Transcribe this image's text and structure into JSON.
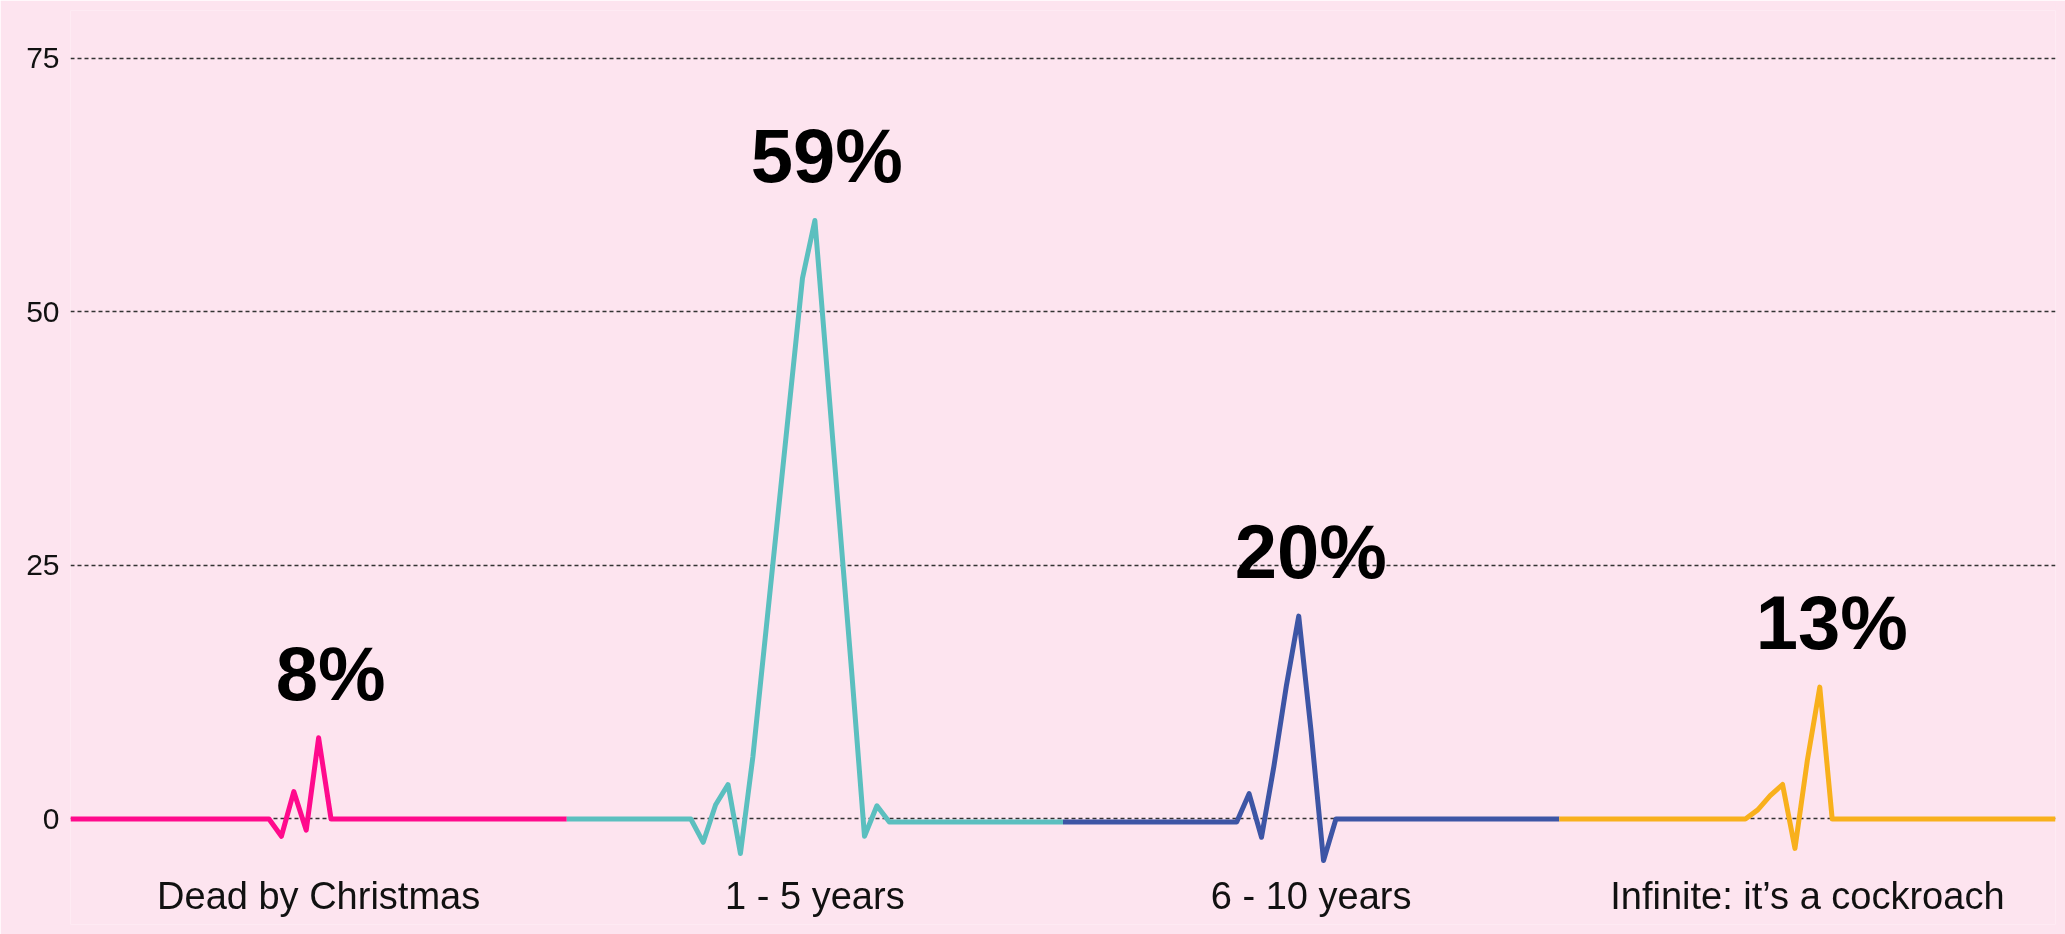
{
  "chart_data": {
    "type": "line",
    "categories": [
      null,
      null,
      null,
      null,
      null,
      null,
      null,
      null,
      null,
      null,
      null,
      null,
      null,
      null,
      null,
      null,
      null,
      null,
      null,
      null,
      null,
      null,
      null,
      null,
      null,
      null,
      null,
      null,
      null,
      null,
      null,
      null,
      null,
      null,
      null,
      null,
      null,
      null,
      null,
      null,
      null,
      null,
      null,
      null,
      null,
      null,
      null,
      null,
      null,
      null,
      null,
      null,
      null,
      null,
      null,
      null,
      null,
      null,
      null,
      null,
      null,
      null,
      null,
      null,
      null,
      null,
      null,
      null,
      null,
      null,
      null,
      null,
      null,
      null,
      null,
      null,
      null,
      null,
      null,
      null,
      null,
      null,
      null,
      null,
      null,
      null,
      null,
      null,
      null,
      null,
      null,
      null,
      null,
      null,
      null,
      null,
      null,
      null,
      null,
      null,
      null,
      null,
      null,
      null,
      null,
      null,
      null,
      null,
      null,
      null,
      null,
      null,
      null,
      null,
      null,
      null,
      null,
      null,
      null,
      null,
      null,
      null,
      null,
      null,
      null,
      null,
      null,
      null,
      null,
      null,
      null,
      null,
      null,
      null,
      null,
      null,
      null,
      null,
      null,
      null,
      null,
      null,
      null,
      null,
      null,
      null,
      null,
      null,
      null,
      null,
      null,
      null,
      null,
      null,
      null,
      null,
      null,
      null,
      null,
      null,
      null
    ],
    "ylim": [
      -10.4,
      79.7
    ],
    "yticks": [
      0,
      25,
      50,
      75
    ],
    "tick_labels": "y",
    "grid": "y",
    "line_style": "solid",
    "annotations": [
      "Dead by Christmas",
      "1 - 5 years",
      "6 - 10 years",
      "Infinite: it’s a cockroach"
    ],
    "series": [
      {
        "color": "#ff0a8c",
        "values": [
          0,
          0,
          0,
          0,
          0,
          0,
          0,
          0,
          0,
          0,
          0,
          0,
          0,
          0,
          0,
          0,
          0,
          -1.7,
          2.7,
          -1.1,
          8,
          0,
          0,
          0,
          0,
          0,
          0,
          0,
          0,
          0,
          0,
          0,
          0,
          0,
          0,
          0,
          0,
          0,
          0,
          0,
          0,
          null,
          null,
          null,
          null,
          null,
          null,
          null,
          null,
          null,
          null,
          null,
          null,
          null,
          null,
          null,
          null,
          null,
          null,
          null,
          null,
          null,
          null,
          null,
          null,
          null,
          null,
          null,
          null,
          null,
          null,
          null,
          null,
          null,
          null,
          null,
          null,
          null,
          null,
          null,
          null,
          null,
          null,
          null,
          null,
          null,
          null,
          null,
          null,
          null,
          null,
          null,
          null,
          null,
          null,
          null,
          null,
          null,
          null,
          null,
          null,
          null,
          null,
          null,
          null,
          null,
          null,
          null,
          null,
          null,
          null,
          null,
          null,
          null,
          null,
          null,
          null,
          null,
          null,
          null,
          null,
          null,
          null,
          null,
          null,
          null,
          null,
          null,
          null,
          null,
          null,
          null,
          null,
          null,
          null,
          null,
          null,
          null,
          null,
          null,
          null,
          null,
          null,
          null,
          null,
          null,
          null,
          null,
          null,
          null,
          null,
          null,
          null,
          null,
          null,
          null,
          null,
          null,
          null,
          null,
          null
        ],
        "value_labels": [
          null,
          null,
          null,
          null,
          null,
          null,
          null,
          null,
          null,
          null,
          null,
          null,
          null,
          null,
          null,
          null,
          null,
          null,
          null,
          null,
          "8%",
          null,
          null,
          null,
          null,
          null,
          null,
          null,
          null,
          null,
          null,
          null,
          null,
          null,
          null,
          null,
          null,
          null,
          null,
          null,
          null,
          null,
          null,
          null,
          null,
          null,
          null,
          null,
          null,
          null,
          null,
          null,
          null,
          null,
          null,
          null,
          null,
          null,
          null,
          null,
          null,
          null,
          null,
          null,
          null,
          null,
          null,
          null,
          null,
          null,
          null,
          null,
          null,
          null,
          null,
          null,
          null,
          null,
          null,
          null,
          null,
          null,
          null,
          null,
          null,
          null,
          null,
          null,
          null,
          null,
          null,
          null,
          null,
          null,
          null,
          null,
          null,
          null,
          null,
          null,
          null,
          null,
          null,
          null,
          null,
          null,
          null,
          null,
          null,
          null,
          null,
          null,
          null,
          null,
          null,
          null,
          null,
          null,
          null,
          null,
          null,
          null,
          null,
          null,
          null,
          null,
          null,
          null,
          null,
          null,
          null,
          null,
          null,
          null,
          null,
          null,
          null,
          null,
          null,
          null,
          null,
          null,
          null,
          null,
          null,
          null,
          null,
          null,
          null,
          null,
          null,
          null,
          null,
          null,
          null,
          null,
          null,
          null,
          null,
          null,
          null
        ]
      },
      {
        "color": "#5bbfbf",
        "values": [
          null,
          null,
          null,
          null,
          null,
          null,
          null,
          null,
          null,
          null,
          null,
          null,
          null,
          null,
          null,
          null,
          null,
          null,
          null,
          null,
          null,
          null,
          null,
          null,
          null,
          null,
          null,
          null,
          null,
          null,
          null,
          null,
          null,
          null,
          null,
          null,
          null,
          null,
          null,
          null,
          0,
          0,
          0,
          0,
          0,
          0,
          0,
          0,
          0,
          0,
          0,
          -2.3,
          1.4,
          3.4,
          -3.4,
          6.1,
          17.9,
          29.7,
          41.5,
          53.3,
          59,
          44,
          29,
          14,
          -1.7,
          1.3,
          -0.3,
          -0.3,
          -0.3,
          -0.3,
          -0.3,
          -0.3,
          -0.3,
          -0.3,
          -0.3,
          -0.3,
          -0.3,
          -0.3,
          -0.3,
          -0.3,
          -0.3,
          null,
          null,
          null,
          null,
          null,
          null,
          null,
          null,
          null,
          null,
          null,
          null,
          null,
          null,
          null,
          null,
          null,
          null,
          null,
          null,
          null,
          null,
          null,
          null,
          null,
          null,
          null,
          null,
          null,
          null,
          null,
          null,
          null,
          null,
          null,
          null,
          null,
          null,
          null,
          null,
          null,
          null,
          null,
          null,
          null,
          null,
          null,
          null,
          null,
          null,
          null,
          null,
          null,
          null,
          null,
          null,
          null,
          null,
          null,
          null,
          null,
          null,
          null,
          null,
          null,
          null,
          null,
          null,
          null,
          null,
          null,
          null,
          null,
          null,
          null,
          null,
          null,
          null,
          null,
          null
        ],
        "value_labels": [
          null,
          null,
          null,
          null,
          null,
          null,
          null,
          null,
          null,
          null,
          null,
          null,
          null,
          null,
          null,
          null,
          null,
          null,
          null,
          null,
          null,
          null,
          null,
          null,
          null,
          null,
          null,
          null,
          null,
          null,
          null,
          null,
          null,
          null,
          null,
          null,
          null,
          null,
          null,
          null,
          null,
          null,
          null,
          null,
          null,
          null,
          null,
          null,
          null,
          null,
          null,
          null,
          null,
          null,
          null,
          null,
          null,
          null,
          null,
          null,
          "59%",
          null,
          null,
          null,
          null,
          null,
          null,
          null,
          null,
          null,
          null,
          null,
          null,
          null,
          null,
          null,
          null,
          null,
          null,
          null,
          null,
          null,
          null,
          null,
          null,
          null,
          null,
          null,
          null,
          null,
          null,
          null,
          null,
          null,
          null,
          null,
          null,
          null,
          null,
          null,
          null,
          null,
          null,
          null,
          null,
          null,
          null,
          null,
          null,
          null,
          null,
          null,
          null,
          null,
          null,
          null,
          null,
          null,
          null,
          null,
          null,
          null,
          null,
          null,
          null,
          null,
          null,
          null,
          null,
          null,
          null,
          null,
          null,
          null,
          null,
          null,
          null,
          null,
          null,
          null,
          null,
          null,
          null,
          null,
          null,
          null,
          null,
          null,
          null,
          null,
          null,
          null,
          null,
          null,
          null,
          null,
          null,
          null,
          null,
          null,
          null
        ]
      },
      {
        "color": "#3d55a5",
        "values": [
          null,
          null,
          null,
          null,
          null,
          null,
          null,
          null,
          null,
          null,
          null,
          null,
          null,
          null,
          null,
          null,
          null,
          null,
          null,
          null,
          null,
          null,
          null,
          null,
          null,
          null,
          null,
          null,
          null,
          null,
          null,
          null,
          null,
          null,
          null,
          null,
          null,
          null,
          null,
          null,
          null,
          null,
          null,
          null,
          null,
          null,
          null,
          null,
          null,
          null,
          null,
          null,
          null,
          null,
          null,
          null,
          null,
          null,
          null,
          null,
          null,
          null,
          null,
          null,
          null,
          null,
          null,
          null,
          null,
          null,
          null,
          null,
          null,
          null,
          null,
          null,
          null,
          null,
          null,
          null,
          -0.3,
          -0.3,
          -0.3,
          -0.3,
          -0.3,
          -0.3,
          -0.3,
          -0.3,
          -0.3,
          -0.3,
          -0.3,
          -0.3,
          -0.3,
          -0.3,
          -0.3,
          2.5,
          -1.8,
          5.2,
          13.1,
          20,
          8.6,
          -4.1,
          0,
          0,
          0,
          0,
          0,
          0,
          0,
          0,
          0,
          0,
          0,
          0,
          0,
          0,
          0,
          0,
          0,
          0,
          0,
          null,
          null,
          null,
          null,
          null,
          null,
          null,
          null,
          null,
          null,
          null,
          null,
          null,
          null,
          null,
          null,
          null,
          null,
          null,
          null,
          null,
          null,
          null,
          null,
          null,
          null,
          null,
          null,
          null,
          null,
          null,
          null,
          null,
          null,
          null,
          null,
          null,
          null,
          null,
          null
        ],
        "value_labels": [
          null,
          null,
          null,
          null,
          null,
          null,
          null,
          null,
          null,
          null,
          null,
          null,
          null,
          null,
          null,
          null,
          null,
          null,
          null,
          null,
          null,
          null,
          null,
          null,
          null,
          null,
          null,
          null,
          null,
          null,
          null,
          null,
          null,
          null,
          null,
          null,
          null,
          null,
          null,
          null,
          null,
          null,
          null,
          null,
          null,
          null,
          null,
          null,
          null,
          null,
          null,
          null,
          null,
          null,
          null,
          null,
          null,
          null,
          null,
          null,
          null,
          null,
          null,
          null,
          null,
          null,
          null,
          null,
          null,
          null,
          null,
          null,
          null,
          null,
          null,
          null,
          null,
          null,
          null,
          null,
          null,
          null,
          null,
          null,
          null,
          null,
          null,
          null,
          null,
          null,
          null,
          null,
          null,
          null,
          null,
          null,
          null,
          null,
          null,
          "20%",
          null,
          null,
          null,
          null,
          null,
          null,
          null,
          null,
          null,
          null,
          null,
          null,
          null,
          null,
          null,
          null,
          null,
          null,
          null,
          null,
          null,
          null,
          null,
          null,
          null,
          null,
          null,
          null,
          null,
          null,
          null,
          null,
          null,
          null,
          null,
          null,
          null,
          null,
          null,
          null,
          null,
          null,
          null,
          null,
          null,
          null,
          null,
          null,
          null,
          null,
          null,
          null,
          null,
          null,
          null,
          null,
          null,
          null,
          null,
          null,
          null
        ]
      },
      {
        "color": "#f8b01c",
        "values": [
          null,
          null,
          null,
          null,
          null,
          null,
          null,
          null,
          null,
          null,
          null,
          null,
          null,
          null,
          null,
          null,
          null,
          null,
          null,
          null,
          null,
          null,
          null,
          null,
          null,
          null,
          null,
          null,
          null,
          null,
          null,
          null,
          null,
          null,
          null,
          null,
          null,
          null,
          null,
          null,
          null,
          null,
          null,
          null,
          null,
          null,
          null,
          null,
          null,
          null,
          null,
          null,
          null,
          null,
          null,
          null,
          null,
          null,
          null,
          null,
          null,
          null,
          null,
          null,
          null,
          null,
          null,
          null,
          null,
          null,
          null,
          null,
          null,
          null,
          null,
          null,
          null,
          null,
          null,
          null,
          null,
          null,
          null,
          null,
          null,
          null,
          null,
          null,
          null,
          null,
          null,
          null,
          null,
          null,
          null,
          null,
          null,
          null,
          null,
          null,
          null,
          null,
          null,
          null,
          null,
          null,
          null,
          null,
          null,
          null,
          null,
          null,
          null,
          null,
          null,
          null,
          null,
          null,
          null,
          null,
          0,
          0,
          0,
          0,
          0,
          0,
          0,
          0,
          0,
          0,
          0,
          0,
          0,
          0,
          0,
          0,
          0.9,
          2.3,
          3.4,
          -2.9,
          5.8,
          13,
          0,
          0,
          0,
          0,
          0,
          0,
          0,
          0,
          0,
          0,
          0,
          0,
          0,
          0,
          0,
          0,
          0,
          0,
          0
        ],
        "value_labels": [
          null,
          null,
          null,
          null,
          null,
          null,
          null,
          null,
          null,
          null,
          null,
          null,
          null,
          null,
          null,
          null,
          null,
          null,
          null,
          null,
          null,
          null,
          null,
          null,
          null,
          null,
          null,
          null,
          null,
          null,
          null,
          null,
          null,
          null,
          null,
          null,
          null,
          null,
          null,
          null,
          null,
          null,
          null,
          null,
          null,
          null,
          null,
          null,
          null,
          null,
          null,
          null,
          null,
          null,
          null,
          null,
          null,
          null,
          null,
          null,
          null,
          null,
          null,
          null,
          null,
          null,
          null,
          null,
          null,
          null,
          null,
          null,
          null,
          null,
          null,
          null,
          null,
          null,
          null,
          null,
          null,
          null,
          null,
          null,
          null,
          null,
          null,
          null,
          null,
          null,
          null,
          null,
          null,
          null,
          null,
          null,
          null,
          null,
          null,
          null,
          null,
          null,
          null,
          null,
          null,
          null,
          null,
          null,
          null,
          null,
          null,
          null,
          null,
          null,
          null,
          null,
          null,
          null,
          null,
          null,
          null,
          null,
          null,
          null,
          null,
          null,
          null,
          null,
          null,
          null,
          null,
          null,
          null,
          null,
          null,
          null,
          null,
          null,
          null,
          null,
          null,
          "13%",
          null,
          null,
          null,
          null,
          null,
          null,
          null,
          null,
          null,
          null,
          null,
          null,
          null,
          null,
          null,
          null,
          null,
          null,
          null
        ]
      }
    ]
  }
}
